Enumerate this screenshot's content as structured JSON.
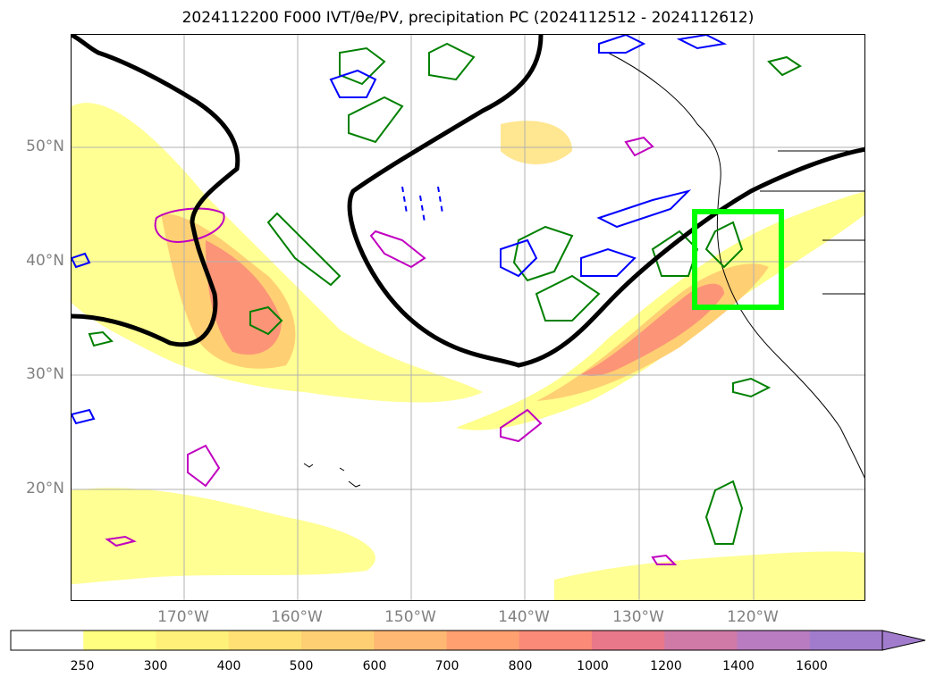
{
  "title": "2024112200 F000 IVT/θe/PV, precipitation PC (2024112512 - 2024112612)",
  "lat_labels": [
    "50°N",
    "40°N",
    "30°N",
    "20°N"
  ],
  "lon_labels": [
    "170°W",
    "160°W",
    "150°W",
    "140°W",
    "130°W",
    "120°W"
  ],
  "colorbar": {
    "ticks": [
      "250",
      "300",
      "400",
      "500",
      "600",
      "700",
      "800",
      "1000",
      "1200",
      "1400",
      "1600"
    ],
    "colors": [
      "#ffffff",
      "#ffff80",
      "#fff07a",
      "#ffe074",
      "#ffcf73",
      "#ffb873",
      "#ffa070",
      "#fb8a78",
      "#e8788a",
      "#d07aa8",
      "#b97cc0",
      "#a27ccc"
    ]
  },
  "colors": {
    "theta_e_contour": "#008000",
    "pv_contour_pos": "#0000ff",
    "pv_contour_mag": "#c000c0",
    "ivt_jet_line": "#000000",
    "target_box": "#00ff00"
  }
}
